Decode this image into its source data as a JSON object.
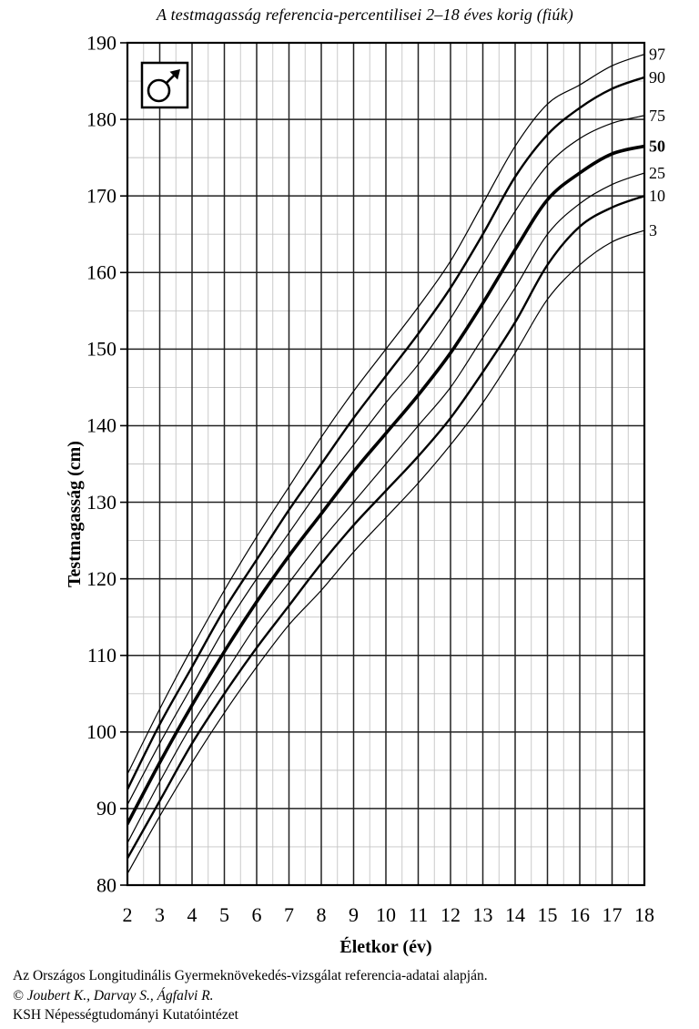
{
  "title": "A testmagasság referencia-percentilisei 2–18 éves korig (fiúk)",
  "gender_box": {
    "icon": "male-symbol-icon",
    "meaning": "fiúk (boys)"
  },
  "chart_data": {
    "type": "line",
    "title": "A testmagasság referencia-percentilisei 2–18 éves korig (fiúk)",
    "xlabel": "Életkor (év)",
    "ylabel": "Testmagasság (cm)",
    "xlim": [
      2,
      18
    ],
    "ylim": [
      80,
      190
    ],
    "x_ticks": [
      2,
      3,
      4,
      5,
      6,
      7,
      8,
      9,
      10,
      11,
      12,
      13,
      14,
      15,
      16,
      17,
      18
    ],
    "y_ticks": [
      80,
      90,
      100,
      110,
      120,
      130,
      140,
      150,
      160,
      170,
      180,
      190
    ],
    "x_minor_step": 0.5,
    "y_minor_step": 5,
    "grid": "major and minor, on",
    "legend_position": "curve labels at right edge",
    "x": [
      2,
      3,
      4,
      5,
      6,
      7,
      8,
      9,
      10,
      11,
      12,
      13,
      14,
      15,
      16,
      17,
      18
    ],
    "series": [
      {
        "name": "97",
        "emphasis": "thin",
        "values": [
          94.5,
          103,
          111,
          118.5,
          125.5,
          132,
          138.5,
          144.5,
          150,
          155.5,
          161.5,
          169,
          176.5,
          182,
          184.5,
          187,
          188.5
        ]
      },
      {
        "name": "90",
        "emphasis": "medium",
        "values": [
          92.5,
          101,
          108.5,
          116,
          122.5,
          129,
          135,
          141,
          146.5,
          152,
          158,
          165,
          172.5,
          178,
          181.5,
          184,
          185.5
        ]
      },
      {
        "name": "75",
        "emphasis": "thin",
        "values": [
          90.5,
          98.5,
          106,
          113.5,
          120,
          126,
          132,
          137.5,
          143,
          148,
          154,
          161,
          168,
          174,
          177.5,
          179.5,
          180.5
        ]
      },
      {
        "name": "50",
        "emphasis": "bold",
        "values": [
          88,
          96,
          103.5,
          110.5,
          117,
          123,
          128.5,
          134,
          139,
          144,
          149.5,
          156,
          163,
          169.5,
          173,
          175.5,
          176.5
        ]
      },
      {
        "name": "25",
        "emphasis": "thin",
        "values": [
          85.5,
          93.5,
          101,
          107.5,
          114,
          119.5,
          125,
          130,
          135,
          140,
          145,
          151.5,
          158,
          165,
          169,
          171.5,
          173
        ]
      },
      {
        "name": "10",
        "emphasis": "medium",
        "values": [
          83.5,
          91,
          98.5,
          105,
          111,
          116.5,
          122,
          127,
          131.5,
          136,
          141,
          147,
          153.5,
          161,
          166,
          168.5,
          170
        ]
      },
      {
        "name": "3",
        "emphasis": "thin",
        "values": [
          81.5,
          89,
          96,
          102.5,
          108.5,
          114,
          118.5,
          123.5,
          128,
          132.5,
          137.5,
          143,
          149.5,
          156.5,
          161,
          164,
          165.5
        ]
      }
    ],
    "colors": {
      "curve": "#000000",
      "frame": "#000000",
      "major_grid": "#222222",
      "minor_grid": "#c4c4c4"
    }
  },
  "footer": {
    "line1": "Az Országos Longitudinális Gyermeknövekedés-vizsgálat referencia-adatai alapján.",
    "line2": "© Joubert K., Darvay S., Ágfalvi R.",
    "line3": "KSH Népességtudományi Kutatóintézet"
  }
}
